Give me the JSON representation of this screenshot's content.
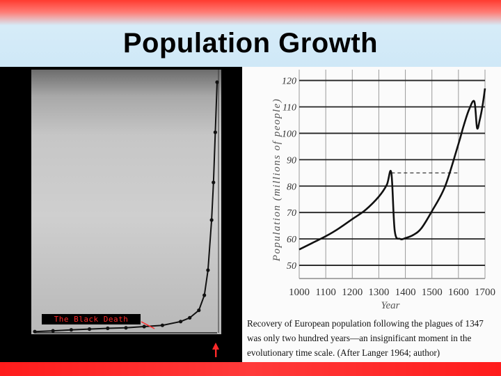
{
  "slide": {
    "title": "Population Growth",
    "black_death_label": "The Black Death",
    "caption": "Recovery of European population following the plagues of 1347 was only two hundred years—an insignificant moment in the evolutionary time scale. (After Langer 1964; author)"
  },
  "colors": {
    "accent_red": "#ff2020",
    "arrow_red": "#ff2a2a",
    "title_band": "#cfe8f7"
  },
  "chart_data": [
    {
      "type": "line",
      "title": "",
      "xlabel": "",
      "ylabel": "",
      "annotations": [
        "The Black Death"
      ],
      "series": [
        {
          "values_shape": "flat-then-exponential",
          "x": [
            0,
            0.1,
            0.2,
            0.3,
            0.4,
            0.5,
            0.6,
            0.7,
            0.8,
            0.85,
            0.9,
            0.93,
            0.95,
            0.97,
            0.98,
            0.99,
            1.0
          ],
          "y": [
            0.005,
            0.008,
            0.012,
            0.015,
            0.018,
            0.02,
            0.025,
            0.03,
            0.045,
            0.06,
            0.09,
            0.15,
            0.25,
            0.45,
            0.6,
            0.8,
            1.0
          ]
        }
      ]
    },
    {
      "type": "line",
      "title": "",
      "xlabel": "Year",
      "ylabel": "Population (millions of people)",
      "xlim": [
        1000,
        1700
      ],
      "x_ticks": [
        1000,
        1100,
        1200,
        1300,
        1400,
        1500,
        1600,
        1700
      ],
      "y_ticks": [
        50,
        60,
        70,
        80,
        90,
        100,
        110,
        120
      ],
      "y_tick_labels": [
        "50",
        "60",
        "70",
        "80",
        "90",
        "100",
        "110",
        "120"
      ],
      "ylim": [
        45,
        122
      ],
      "grid": true,
      "series": [
        {
          "x": [
            1000,
            1050,
            1100,
            1150,
            1200,
            1250,
            1300,
            1330,
            1347,
            1360,
            1380,
            1400,
            1430,
            1460,
            1500,
            1550,
            1600,
            1620,
            1640,
            1660,
            1670,
            1680,
            1690,
            1700
          ],
          "y": [
            56,
            58.5,
            61,
            64,
            67.5,
            71,
            76,
            80.5,
            85,
            63,
            60,
            60.3,
            61.5,
            64,
            70.5,
            80,
            96,
            103,
            109,
            112,
            102,
            105,
            110,
            117
          ]
        }
      ],
      "reference_line": {
        "y": 85,
        "x": [
          1347,
          1600
        ],
        "style": "dashed"
      }
    }
  ]
}
